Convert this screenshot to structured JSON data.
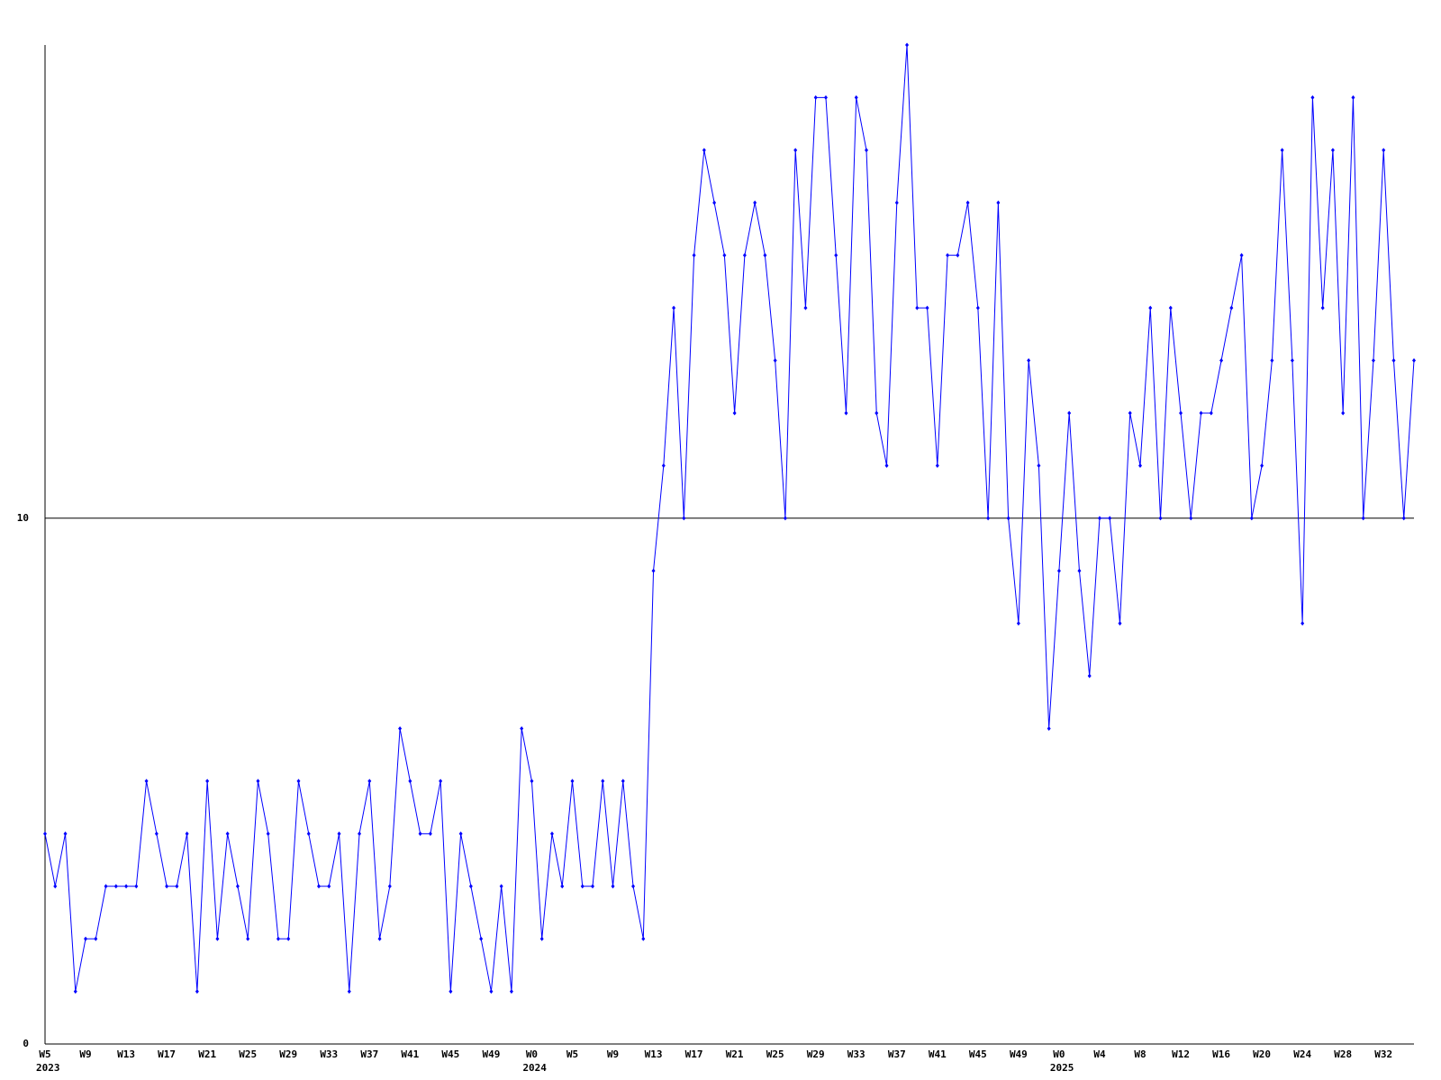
{
  "chart_data": {
    "type": "line",
    "categories": [
      "W5",
      null,
      null,
      null,
      "W9",
      null,
      null,
      null,
      "W13",
      null,
      null,
      null,
      "W17",
      null,
      null,
      null,
      "W21",
      null,
      null,
      null,
      "W25",
      null,
      null,
      null,
      "W29",
      null,
      null,
      null,
      "W33",
      null,
      null,
      null,
      "W37",
      null,
      null,
      null,
      "W41",
      null,
      null,
      null,
      "W45",
      null,
      null,
      null,
      "W49",
      null,
      null,
      null,
      "W0",
      null,
      null,
      null,
      "W5",
      null,
      null,
      null,
      "W9",
      null,
      null,
      null,
      "W13",
      null,
      null,
      null,
      "W17",
      null,
      null,
      null,
      "W21",
      null,
      null,
      null,
      "W25",
      null,
      null,
      null,
      "W29",
      null,
      null,
      null,
      "W33",
      null,
      null,
      null,
      "W37",
      null,
      null,
      null,
      "W41",
      null,
      null,
      null,
      "W45",
      null,
      null,
      null,
      "W49",
      null,
      null,
      null,
      "W0",
      null,
      null,
      null,
      "W4",
      null,
      null,
      null,
      "W8",
      null,
      null,
      null,
      "W12",
      null,
      null,
      null,
      "W16",
      null,
      null,
      null,
      "W20",
      null,
      null,
      null,
      "W24",
      null,
      null,
      null,
      "W28",
      null,
      null,
      null,
      "W32",
      null,
      null,
      null
    ],
    "category_years": [
      "2023",
      null,
      null,
      null,
      null,
      null,
      null,
      null,
      null,
      null,
      null,
      null,
      null,
      null,
      null,
      null,
      null,
      null,
      null,
      null,
      null,
      null,
      null,
      null,
      null,
      null,
      null,
      null,
      null,
      null,
      null,
      null,
      null,
      null,
      null,
      null,
      null,
      null,
      null,
      null,
      null,
      null,
      null,
      null,
      null,
      null,
      null,
      null,
      "2024",
      null,
      null,
      null,
      null,
      null,
      null,
      null,
      null,
      null,
      null,
      null,
      null,
      null,
      null,
      null,
      null,
      null,
      null,
      null,
      null,
      null,
      null,
      null,
      null,
      null,
      null,
      null,
      null,
      null,
      null,
      null,
      null,
      null,
      null,
      null,
      null,
      null,
      null,
      null,
      null,
      null,
      null,
      null,
      null,
      null,
      null,
      null,
      null,
      null,
      null,
      null,
      "2025",
      null,
      null,
      null,
      null,
      null,
      null,
      null,
      null,
      null,
      null,
      null,
      null,
      null,
      null,
      null,
      null,
      null,
      null,
      null,
      null,
      null,
      null,
      null,
      null,
      null,
      null,
      null,
      null,
      null,
      null,
      null,
      null,
      null,
      null,
      null
    ],
    "series": [
      {
        "color": "#0000ff",
        "values": [
          4,
          3,
          4,
          1,
          2,
          2,
          3,
          3,
          3,
          3,
          5,
          4,
          3,
          3,
          4,
          1,
          5,
          2,
          4,
          3,
          2,
          5,
          4,
          2,
          2,
          5,
          4,
          3,
          3,
          4,
          1,
          4,
          5,
          2,
          3,
          6,
          5,
          4,
          4,
          5,
          1,
          4,
          3,
          2,
          1,
          3,
          1,
          6,
          5,
          2,
          4,
          3,
          5,
          3,
          3,
          5,
          3,
          5,
          3,
          2,
          9,
          11,
          14,
          10,
          15,
          17,
          16,
          15,
          12,
          15,
          16,
          15,
          13,
          10,
          17,
          14,
          18,
          18,
          15,
          12,
          18,
          17,
          12,
          11,
          16,
          19,
          14,
          14,
          11,
          15,
          15,
          16,
          14,
          10,
          16,
          10,
          8,
          13,
          11,
          6,
          9,
          12,
          9,
          7,
          10,
          10,
          8,
          12,
          11,
          14,
          10,
          14,
          12,
          10,
          12,
          12,
          13,
          14,
          15,
          10,
          11,
          13,
          17,
          13,
          8,
          18,
          14,
          17,
          12,
          18,
          10,
          13,
          17,
          13,
          10,
          13
        ]
      }
    ],
    "ylim": [
      0,
      19
    ],
    "yticks": [
      0,
      10
    ],
    "grid": true
  }
}
